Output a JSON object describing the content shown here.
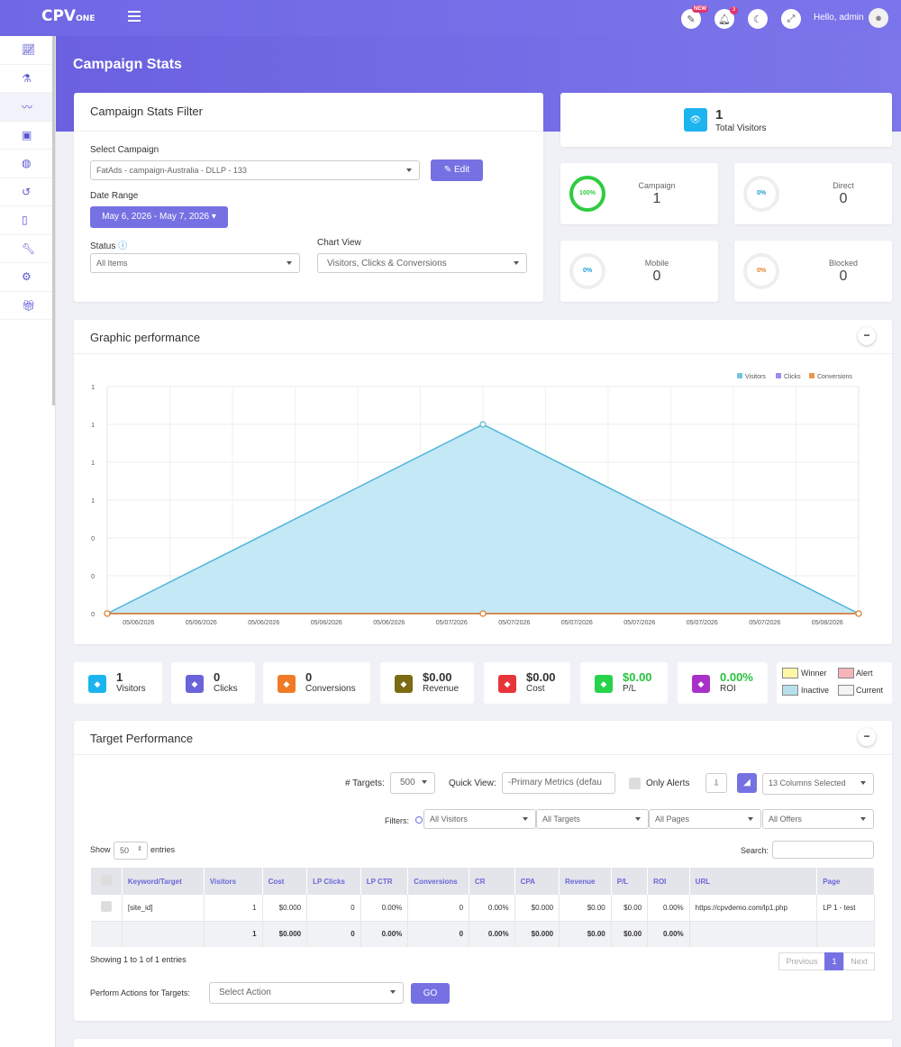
{
  "header": {
    "logo_main": "CPV",
    "logo_sub": "ONE",
    "new_badge": "NEW",
    "notif_count": "3",
    "greeting": "Hello, admin"
  },
  "sidebar": {
    "items": [
      "chart-line-icon",
      "flask-icon",
      "trend-icon",
      "briefcase-icon",
      "globe-icon",
      "history-icon",
      "clipboard-icon",
      "wrench-icon",
      "cog-icon",
      "gift-icon"
    ]
  },
  "page_title": "Campaign Stats",
  "filter": {
    "title": "Campaign Stats Filter",
    "select_campaign_label": "Select Campaign",
    "campaign_value": "FatAds - campaign-Australia  -  DLLP  -  133",
    "edit_label": "Edit",
    "date_range_label": "Date Range",
    "date_range_value": "May 6, 2026 - May 7, 2026",
    "status_label": "Status",
    "status_value": "All Items",
    "chart_view_label": "Chart View",
    "chart_view_value": "Visitors, Clicks & Conversions"
  },
  "total_visitors": {
    "value": "1",
    "label": "Total Visitors"
  },
  "stats": [
    {
      "label": "Campaign",
      "value": "1",
      "percent": "100%",
      "color": "#2ecc40"
    },
    {
      "label": "Direct",
      "value": "0",
      "percent": "0%",
      "color": "#1e9bd7"
    },
    {
      "label": "Mobile",
      "value": "0",
      "percent": "0%",
      "color": "#1e9bd7"
    },
    {
      "label": "Blocked",
      "value": "0",
      "percent": "0%",
      "color": "#e67e22"
    }
  ],
  "graphic": {
    "title": "Graphic performance"
  },
  "chart_data": {
    "type": "area",
    "x": [
      "05/06/2026",
      "05/06/2026",
      "05/06/2026",
      "05/06/2026",
      "05/06/2026",
      "05/07/2026",
      "05/07/2026",
      "05/07/2026",
      "05/07/2026",
      "05/07/2026",
      "05/07/2026",
      "05/08/2026"
    ],
    "y_ticks": [
      "1",
      "1",
      "1",
      "1",
      "0",
      "0",
      "0"
    ],
    "series": [
      {
        "name": "Visitors",
        "color": "#4db6d9",
        "points": [
          [
            0,
            0
          ],
          [
            6,
            1
          ],
          [
            12,
            0
          ]
        ]
      },
      {
        "name": "Clicks",
        "color": "#7b74ea",
        "points": [
          [
            0,
            0
          ],
          [
            6,
            0
          ],
          [
            12,
            0
          ]
        ]
      },
      {
        "name": "Conversions",
        "color": "#e67e22",
        "points": [
          [
            0,
            0
          ],
          [
            6,
            0
          ],
          [
            12,
            0
          ]
        ]
      }
    ],
    "ylim": [
      0,
      1.2
    ],
    "legend": "top-right"
  },
  "kpis": [
    {
      "value": "1",
      "label": "Visitors",
      "color": "#1cb4ee",
      "icon": "eye-icon"
    },
    {
      "value": "0",
      "label": "Clicks",
      "color": "#6a63d9",
      "icon": "pointer-icon"
    },
    {
      "value": "0",
      "label": "Conversions",
      "color": "#f07a25",
      "icon": "refresh-icon"
    },
    {
      "value": "$0.00",
      "label": "Revenue",
      "color": "#7b6b12",
      "icon": "dollar-icon"
    },
    {
      "value": "$0.00",
      "label": "Cost",
      "color": "#e8353a",
      "icon": "scissors-icon"
    },
    {
      "value": "$0.00",
      "label": "P/L",
      "color": "#26d34a",
      "icon": "chart-icon",
      "green": true
    },
    {
      "value": "0.00%",
      "label": "ROI",
      "color": "#a930c8",
      "icon": "bar-icon",
      "green": true
    }
  ],
  "legend": {
    "winner": "Winner",
    "alert": "Alert",
    "inactive": "Inactive",
    "current": "Current",
    "winner_color": "#fff7a8",
    "alert_color": "#f6b4b9",
    "inactive_color": "#b8e0ec",
    "current_color": "#f3f3f5"
  },
  "targets": {
    "title": "Target Performance",
    "num_targets_label": "# Targets:",
    "num_targets_value": "500",
    "quick_view_label": "Quick View:",
    "quick_view_value": "-Primary Metrics (defau",
    "only_alerts_label": "Only Alerts",
    "columns_selected": "13 Columns Selected",
    "filters_label": "Filters:",
    "filter_visitors": "All Visitors",
    "filter_targets": "All Targets",
    "filter_pages": "All Pages",
    "filter_offers": "All Offers",
    "show_label": "Show",
    "show_value": "50",
    "entries_label": "entries",
    "search_label": "Search:",
    "columns": [
      "Keyword/Target",
      "Visitors",
      "Cost",
      "LP Clicks",
      "LP CTR",
      "Conversions",
      "CR",
      "CPA",
      "Revenue",
      "P/L",
      "ROI",
      "URL",
      "Page"
    ],
    "row": [
      "[site_id]",
      "1",
      "$0.000",
      "0",
      "0.00%",
      "0",
      "0.00%",
      "$0.000",
      "$0.00",
      "$0.00",
      "0.00%",
      "https://cpvdemo.com/lp1.php",
      "LP 1 - test"
    ],
    "total": [
      "",
      "1",
      "$0.000",
      "0",
      "0.00%",
      "0",
      "0.00%",
      "$0.000",
      "$0.00",
      "$0.00",
      "0.00%",
      "",
      ""
    ],
    "showing": "Showing 1 to 1 of 1 entries",
    "prev": "Previous",
    "page": "1",
    "next": "Next",
    "actions_label": "Perform Actions for Targets:",
    "action_value": "Select Action",
    "go_label": "GO"
  }
}
